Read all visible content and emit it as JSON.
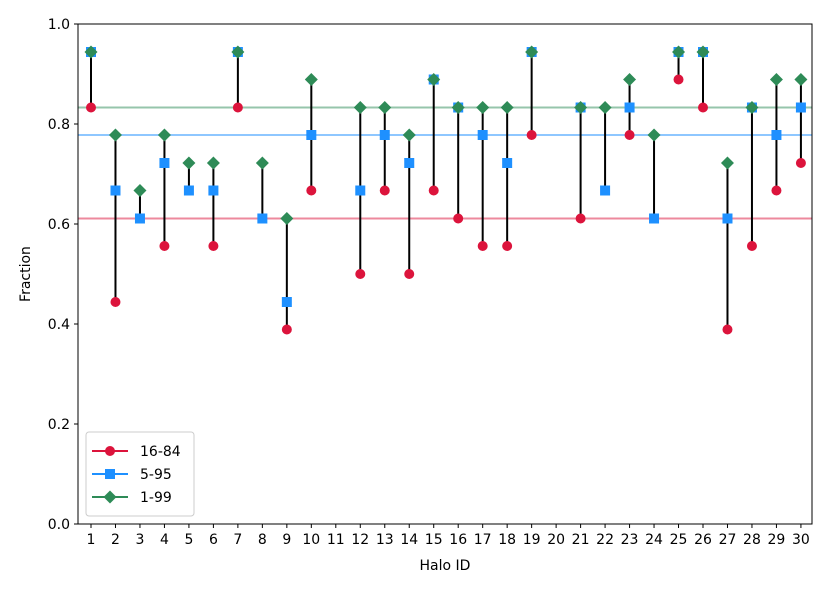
{
  "chart_data": {
    "type": "scatter",
    "xlabel": "Halo ID",
    "ylabel": "Fraction",
    "ylim": [
      0,
      1
    ],
    "yticks": [
      0.0,
      0.2,
      0.4,
      0.6,
      0.8,
      1.0
    ],
    "ytick_labels": [
      "0.0",
      "0.2",
      "0.4",
      "0.6",
      "0.8",
      "1.0"
    ],
    "x": [
      1,
      2,
      3,
      4,
      5,
      6,
      7,
      8,
      9,
      10,
      11,
      12,
      13,
      14,
      15,
      16,
      17,
      18,
      19,
      20,
      21,
      22,
      23,
      24,
      25,
      26,
      27,
      28,
      29,
      30
    ],
    "xtick_labels": [
      "1",
      "2",
      "3",
      "4",
      "5",
      "6",
      "7",
      "8",
      "9",
      "10",
      "11",
      "12",
      "13",
      "14",
      "15",
      "16",
      "17",
      "18",
      "19",
      "20",
      "21",
      "22",
      "23",
      "24",
      "25",
      "26",
      "27",
      "28",
      "29",
      "30"
    ],
    "grid": false,
    "legend_position": "lower-left",
    "series": [
      {
        "name": "16-84",
        "color": "#dc143c",
        "marker": "circle",
        "values": [
          0.833,
          0.444,
          null,
          0.556,
          null,
          0.556,
          0.833,
          null,
          0.389,
          0.667,
          null,
          0.5,
          0.667,
          0.5,
          0.667,
          0.611,
          0.556,
          0.556,
          0.778,
          null,
          0.611,
          null,
          0.778,
          null,
          0.889,
          0.833,
          0.389,
          0.556,
          0.667,
          0.722
        ],
        "reference_line": 0.611
      },
      {
        "name": "5-95",
        "color": "#1e90ff",
        "marker": "square",
        "values": [
          0.944,
          0.667,
          0.611,
          0.722,
          0.667,
          0.667,
          0.944,
          0.611,
          0.444,
          0.778,
          null,
          0.667,
          0.778,
          0.722,
          0.889,
          0.833,
          0.778,
          0.722,
          0.944,
          null,
          0.833,
          0.667,
          0.833,
          0.611,
          0.944,
          0.944,
          0.611,
          0.833,
          0.778,
          0.833
        ],
        "reference_line": 0.778
      },
      {
        "name": "1-99",
        "color": "#2e8b57",
        "marker": "diamond",
        "values": [
          0.944,
          0.778,
          0.667,
          0.778,
          0.722,
          0.722,
          0.944,
          0.722,
          0.611,
          0.889,
          null,
          0.833,
          0.833,
          0.778,
          0.889,
          0.833,
          0.833,
          0.833,
          0.944,
          null,
          0.833,
          0.833,
          0.889,
          0.778,
          0.944,
          0.944,
          0.722,
          0.833,
          0.889,
          0.889
        ],
        "reference_line": 0.833
      }
    ]
  }
}
